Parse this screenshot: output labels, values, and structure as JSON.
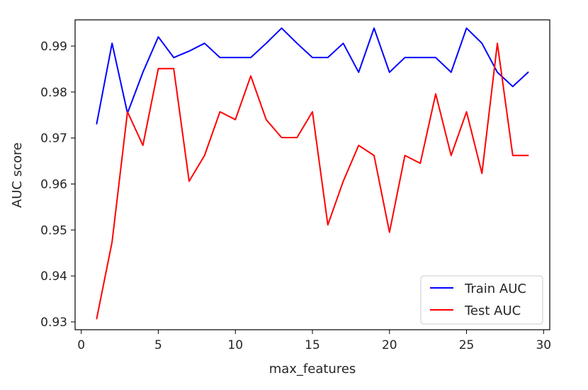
{
  "chart_data": {
    "type": "line",
    "title": "",
    "xlabel": "max_features",
    "ylabel": "AUC score",
    "xlim": [
      -0.4,
      30.4
    ],
    "ylim": [
      0.9283,
      0.9957
    ],
    "xticks": [
      0,
      5,
      10,
      15,
      20,
      25,
      30
    ],
    "xtick_labels": [
      "0",
      "5",
      "10",
      "15",
      "20",
      "25",
      "30"
    ],
    "yticks": [
      0.93,
      0.94,
      0.95,
      0.96,
      0.97,
      0.98,
      0.99
    ],
    "ytick_labels": [
      "0.93",
      "0.94",
      "0.95",
      "0.96",
      "0.97",
      "0.98",
      "0.99"
    ],
    "grid": false,
    "legend_position": "lower-right",
    "x": [
      1,
      2,
      3,
      4,
      5,
      6,
      7,
      8,
      9,
      10,
      11,
      12,
      13,
      14,
      15,
      16,
      17,
      18,
      19,
      20,
      21,
      22,
      23,
      24,
      25,
      26,
      27,
      28,
      29
    ],
    "series": [
      {
        "name": "Train AUC",
        "color": "#0000ff",
        "values": [
          0.9731,
          0.9906,
          0.9754,
          0.9843,
          0.992,
          0.9875,
          0.9889,
          0.9906,
          0.9875,
          0.9875,
          0.9875,
          0.9906,
          0.9939,
          0.9906,
          0.9875,
          0.9875,
          0.9906,
          0.9843,
          0.9939,
          0.9843,
          0.9875,
          0.9875,
          0.9875,
          0.9843,
          0.9939,
          0.9906,
          0.9843,
          0.9812,
          0.9843
        ]
      },
      {
        "name": "Test AUC",
        "color": "#ff0000",
        "values": [
          0.9307,
          0.9474,
          0.9757,
          0.9684,
          0.9851,
          0.9851,
          0.9606,
          0.9662,
          0.9757,
          0.974,
          0.9835,
          0.974,
          0.9701,
          0.9701,
          0.9757,
          0.9511,
          0.9606,
          0.9684,
          0.9662,
          0.9495,
          0.9662,
          0.9645,
          0.9796,
          0.9662,
          0.9757,
          0.9623,
          0.9906,
          0.9662,
          0.9662
        ]
      }
    ]
  }
}
